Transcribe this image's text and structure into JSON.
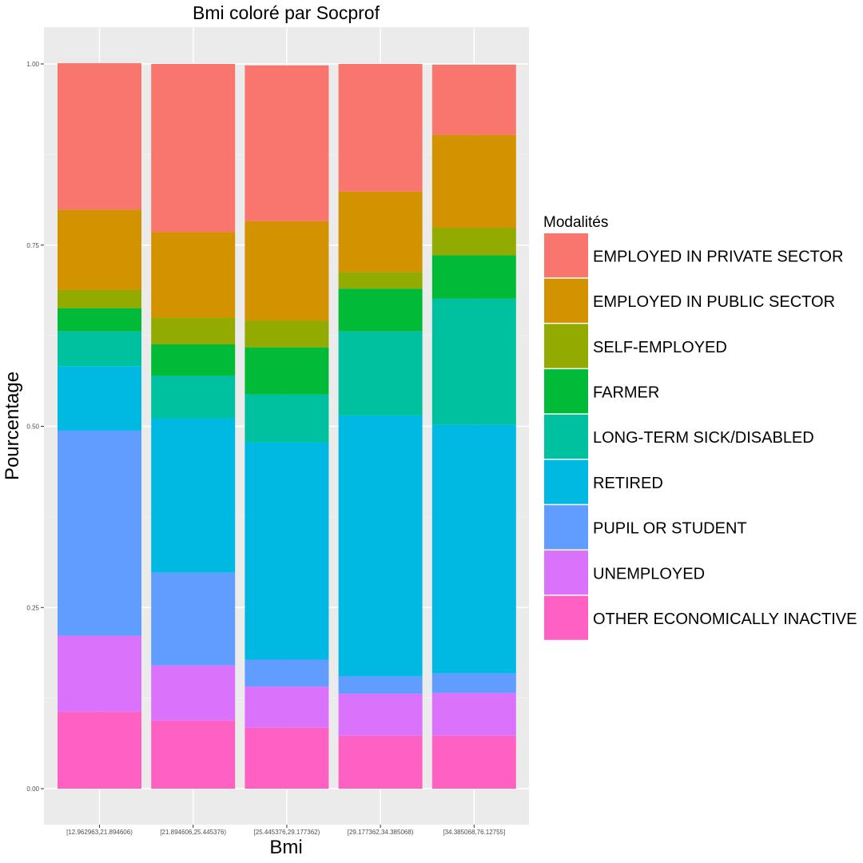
{
  "chart_data": {
    "type": "bar",
    "stacked": true,
    "title": "Bmi coloré par Socprof",
    "xlabel": "Bmi",
    "ylabel": "Pourcentage",
    "ylim": [
      0,
      1
    ],
    "yticks": [
      "0.00",
      "0.25",
      "0.50",
      "0.75",
      "1.00"
    ],
    "grid": true,
    "legend_position": "right",
    "legend_title": "Modalités",
    "categories": [
      "[12.962963,21.894606)",
      "[21.894606,25.445376)",
      "[25.445376,29.177362)",
      "[29.177362,34.385068)",
      "[34.385068,76.12755]"
    ],
    "series": [
      {
        "name": "EMPLOYED IN PRIVATE SECTOR",
        "color": "#F8766D",
        "values": [
          0.202,
          0.232,
          0.215,
          0.176,
          0.097
        ]
      },
      {
        "name": "EMPLOYED IN PUBLIC SECTOR",
        "color": "#D39200",
        "values": [
          0.111,
          0.118,
          0.137,
          0.111,
          0.128
        ]
      },
      {
        "name": "SELF-EMPLOYED",
        "color": "#93AA00",
        "values": [
          0.025,
          0.037,
          0.037,
          0.023,
          0.038
        ]
      },
      {
        "name": "FARMER",
        "color": "#00BA38",
        "values": [
          0.032,
          0.043,
          0.065,
          0.059,
          0.06
        ]
      },
      {
        "name": "LONG-TERM SICK/DISABLED",
        "color": "#00C19F",
        "values": [
          0.048,
          0.059,
          0.066,
          0.116,
          0.174
        ]
      },
      {
        "name": "RETIRED",
        "color": "#00B9E3",
        "values": [
          0.089,
          0.213,
          0.3,
          0.36,
          0.343
        ]
      },
      {
        "name": "PUPIL OR STUDENT",
        "color": "#619CFF",
        "values": [
          0.283,
          0.128,
          0.037,
          0.024,
          0.027
        ]
      },
      {
        "name": "UNEMPLOYED",
        "color": "#DB72FB",
        "values": [
          0.105,
          0.076,
          0.057,
          0.058,
          0.059
        ]
      },
      {
        "name": "OTHER ECONOMICALLY INACTIVE",
        "color": "#FF61C3",
        "values": [
          0.106,
          0.094,
          0.084,
          0.073,
          0.073
        ]
      }
    ]
  }
}
